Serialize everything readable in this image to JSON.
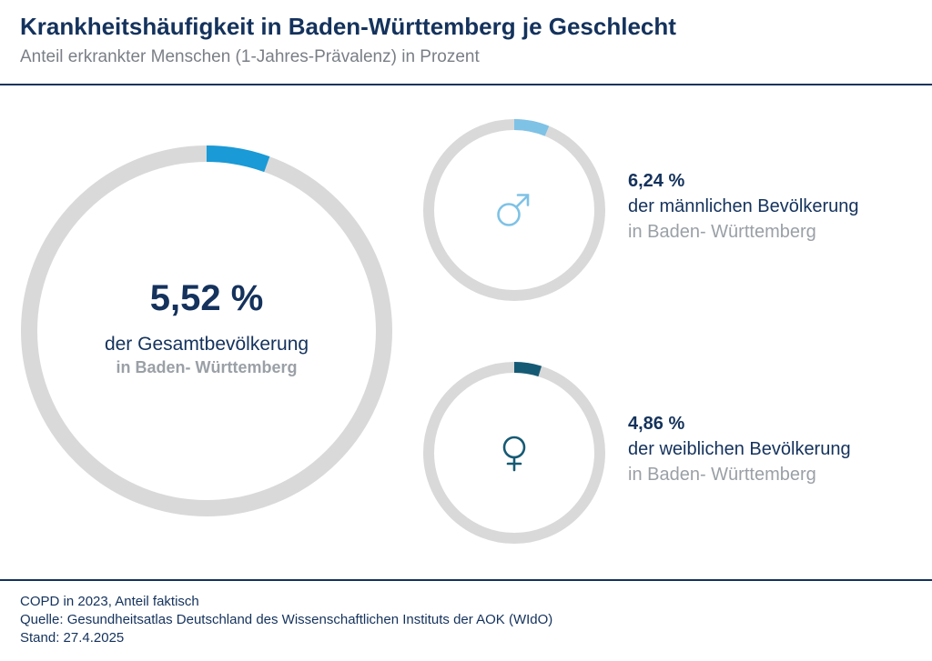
{
  "header": {
    "title": "Krankheitshäufigkeit in Baden-Württemberg je Geschlecht",
    "subtitle": "Anteil erkrankter Menschen (1-Jahres-Prävalenz) in Prozent"
  },
  "chart_data": [
    {
      "type": "pie",
      "style": "donut",
      "name": "gesamt",
      "value": 5.52,
      "max": 100,
      "value_label": "5,52 %",
      "label_line1": "der Gesamtbevölkerung",
      "label_line2": "in Baden- Württemberg",
      "color": "#1a9ad6",
      "track_color": "#d9d9d9"
    },
    {
      "type": "pie",
      "style": "donut",
      "name": "männlich",
      "value": 6.24,
      "max": 100,
      "value_label": "6,24 %",
      "label_line1": "der männlichen Bevölkerung",
      "label_line2": "in Baden- Württemberg",
      "icon": "male-symbol-icon",
      "color": "#7ec2e6",
      "track_color": "#d9d9d9"
    },
    {
      "type": "pie",
      "style": "donut",
      "name": "weiblich",
      "value": 4.86,
      "max": 100,
      "value_label": "4,86 %",
      "label_line1": "der weiblichen Bevölkerung",
      "label_line2": "in Baden- Württemberg",
      "icon": "female-symbol-icon",
      "color": "#155a74",
      "track_color": "#d9d9d9"
    }
  ],
  "footer": {
    "line1": "COPD in 2023, Anteil faktisch",
    "line2": "Quelle: Gesundheitsatlas Deutschland des Wissenschaftlichen Instituts der AOK (WIdO)",
    "line3": "Stand: 27.4.2025"
  }
}
